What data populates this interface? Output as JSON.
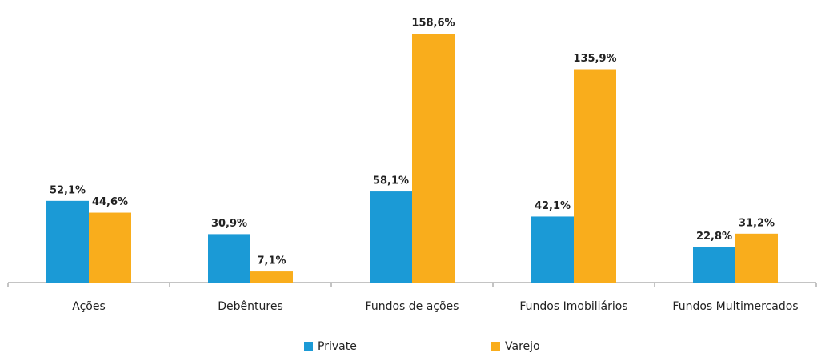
{
  "chart_data": {
    "type": "bar",
    "categories": [
      "Ações",
      "Debêntures",
      "Fundos de ações",
      "Fundos Imobiliários",
      "Fundos Multimercados"
    ],
    "series": [
      {
        "name": "Private",
        "color": "#1b9ad6",
        "values": [
          52.1,
          30.9,
          58.1,
          42.1,
          22.8
        ],
        "value_labels": [
          "52,1%",
          "30,9%",
          "58,1%",
          "42,1%",
          "22,8%"
        ]
      },
      {
        "name": "Varejo",
        "color": "#f9ad1c",
        "values": [
          44.6,
          7.1,
          158.6,
          135.9,
          31.2
        ],
        "value_labels": [
          "44,6%",
          "7,1%",
          "158,6%",
          "135,9%",
          "31,2%"
        ]
      }
    ],
    "legend": "bottom"
  }
}
